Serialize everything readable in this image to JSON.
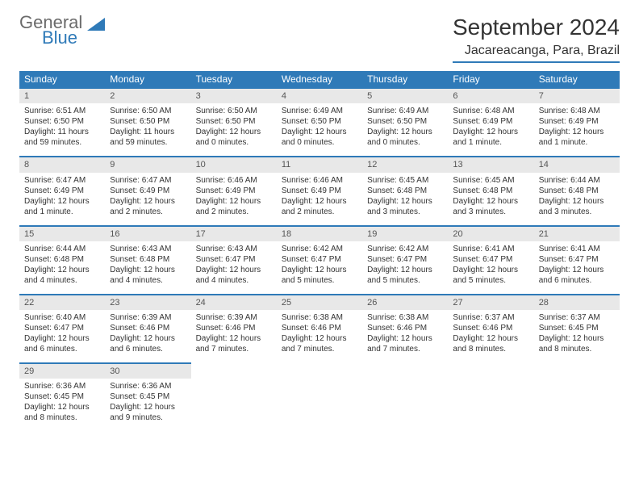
{
  "brand": {
    "name1": "General",
    "name2": "Blue"
  },
  "title": "September 2024",
  "location": "Jacareacanga, Para, Brazil",
  "colors": {
    "accent": "#2f7ab8",
    "header_text": "#ffffff",
    "daynum_bg": "#e8e8e8",
    "text": "#333333",
    "logo_gray": "#6b6b6b"
  },
  "typography": {
    "title_fontsize": 28,
    "header_fontsize": 12,
    "cell_fontsize": 10
  },
  "day_headers": [
    "Sunday",
    "Monday",
    "Tuesday",
    "Wednesday",
    "Thursday",
    "Friday",
    "Saturday"
  ],
  "weeks": [
    [
      {
        "n": "1",
        "sr": "Sunrise: 6:51 AM",
        "ss": "Sunset: 6:50 PM",
        "dl1": "Daylight: 11 hours",
        "dl2": "and 59 minutes."
      },
      {
        "n": "2",
        "sr": "Sunrise: 6:50 AM",
        "ss": "Sunset: 6:50 PM",
        "dl1": "Daylight: 11 hours",
        "dl2": "and 59 minutes."
      },
      {
        "n": "3",
        "sr": "Sunrise: 6:50 AM",
        "ss": "Sunset: 6:50 PM",
        "dl1": "Daylight: 12 hours",
        "dl2": "and 0 minutes."
      },
      {
        "n": "4",
        "sr": "Sunrise: 6:49 AM",
        "ss": "Sunset: 6:50 PM",
        "dl1": "Daylight: 12 hours",
        "dl2": "and 0 minutes."
      },
      {
        "n": "5",
        "sr": "Sunrise: 6:49 AM",
        "ss": "Sunset: 6:50 PM",
        "dl1": "Daylight: 12 hours",
        "dl2": "and 0 minutes."
      },
      {
        "n": "6",
        "sr": "Sunrise: 6:48 AM",
        "ss": "Sunset: 6:49 PM",
        "dl1": "Daylight: 12 hours",
        "dl2": "and 1 minute."
      },
      {
        "n": "7",
        "sr": "Sunrise: 6:48 AM",
        "ss": "Sunset: 6:49 PM",
        "dl1": "Daylight: 12 hours",
        "dl2": "and 1 minute."
      }
    ],
    [
      {
        "n": "8",
        "sr": "Sunrise: 6:47 AM",
        "ss": "Sunset: 6:49 PM",
        "dl1": "Daylight: 12 hours",
        "dl2": "and 1 minute."
      },
      {
        "n": "9",
        "sr": "Sunrise: 6:47 AM",
        "ss": "Sunset: 6:49 PM",
        "dl1": "Daylight: 12 hours",
        "dl2": "and 2 minutes."
      },
      {
        "n": "10",
        "sr": "Sunrise: 6:46 AM",
        "ss": "Sunset: 6:49 PM",
        "dl1": "Daylight: 12 hours",
        "dl2": "and 2 minutes."
      },
      {
        "n": "11",
        "sr": "Sunrise: 6:46 AM",
        "ss": "Sunset: 6:49 PM",
        "dl1": "Daylight: 12 hours",
        "dl2": "and 2 minutes."
      },
      {
        "n": "12",
        "sr": "Sunrise: 6:45 AM",
        "ss": "Sunset: 6:48 PM",
        "dl1": "Daylight: 12 hours",
        "dl2": "and 3 minutes."
      },
      {
        "n": "13",
        "sr": "Sunrise: 6:45 AM",
        "ss": "Sunset: 6:48 PM",
        "dl1": "Daylight: 12 hours",
        "dl2": "and 3 minutes."
      },
      {
        "n": "14",
        "sr": "Sunrise: 6:44 AM",
        "ss": "Sunset: 6:48 PM",
        "dl1": "Daylight: 12 hours",
        "dl2": "and 3 minutes."
      }
    ],
    [
      {
        "n": "15",
        "sr": "Sunrise: 6:44 AM",
        "ss": "Sunset: 6:48 PM",
        "dl1": "Daylight: 12 hours",
        "dl2": "and 4 minutes."
      },
      {
        "n": "16",
        "sr": "Sunrise: 6:43 AM",
        "ss": "Sunset: 6:48 PM",
        "dl1": "Daylight: 12 hours",
        "dl2": "and 4 minutes."
      },
      {
        "n": "17",
        "sr": "Sunrise: 6:43 AM",
        "ss": "Sunset: 6:47 PM",
        "dl1": "Daylight: 12 hours",
        "dl2": "and 4 minutes."
      },
      {
        "n": "18",
        "sr": "Sunrise: 6:42 AM",
        "ss": "Sunset: 6:47 PM",
        "dl1": "Daylight: 12 hours",
        "dl2": "and 5 minutes."
      },
      {
        "n": "19",
        "sr": "Sunrise: 6:42 AM",
        "ss": "Sunset: 6:47 PM",
        "dl1": "Daylight: 12 hours",
        "dl2": "and 5 minutes."
      },
      {
        "n": "20",
        "sr": "Sunrise: 6:41 AM",
        "ss": "Sunset: 6:47 PM",
        "dl1": "Daylight: 12 hours",
        "dl2": "and 5 minutes."
      },
      {
        "n": "21",
        "sr": "Sunrise: 6:41 AM",
        "ss": "Sunset: 6:47 PM",
        "dl1": "Daylight: 12 hours",
        "dl2": "and 6 minutes."
      }
    ],
    [
      {
        "n": "22",
        "sr": "Sunrise: 6:40 AM",
        "ss": "Sunset: 6:47 PM",
        "dl1": "Daylight: 12 hours",
        "dl2": "and 6 minutes."
      },
      {
        "n": "23",
        "sr": "Sunrise: 6:39 AM",
        "ss": "Sunset: 6:46 PM",
        "dl1": "Daylight: 12 hours",
        "dl2": "and 6 minutes."
      },
      {
        "n": "24",
        "sr": "Sunrise: 6:39 AM",
        "ss": "Sunset: 6:46 PM",
        "dl1": "Daylight: 12 hours",
        "dl2": "and 7 minutes."
      },
      {
        "n": "25",
        "sr": "Sunrise: 6:38 AM",
        "ss": "Sunset: 6:46 PM",
        "dl1": "Daylight: 12 hours",
        "dl2": "and 7 minutes."
      },
      {
        "n": "26",
        "sr": "Sunrise: 6:38 AM",
        "ss": "Sunset: 6:46 PM",
        "dl1": "Daylight: 12 hours",
        "dl2": "and 7 minutes."
      },
      {
        "n": "27",
        "sr": "Sunrise: 6:37 AM",
        "ss": "Sunset: 6:46 PM",
        "dl1": "Daylight: 12 hours",
        "dl2": "and 8 minutes."
      },
      {
        "n": "28",
        "sr": "Sunrise: 6:37 AM",
        "ss": "Sunset: 6:45 PM",
        "dl1": "Daylight: 12 hours",
        "dl2": "and 8 minutes."
      }
    ],
    [
      {
        "n": "29",
        "sr": "Sunrise: 6:36 AM",
        "ss": "Sunset: 6:45 PM",
        "dl1": "Daylight: 12 hours",
        "dl2": "and 8 minutes."
      },
      {
        "n": "30",
        "sr": "Sunrise: 6:36 AM",
        "ss": "Sunset: 6:45 PM",
        "dl1": "Daylight: 12 hours",
        "dl2": "and 9 minutes."
      },
      null,
      null,
      null,
      null,
      null
    ]
  ]
}
